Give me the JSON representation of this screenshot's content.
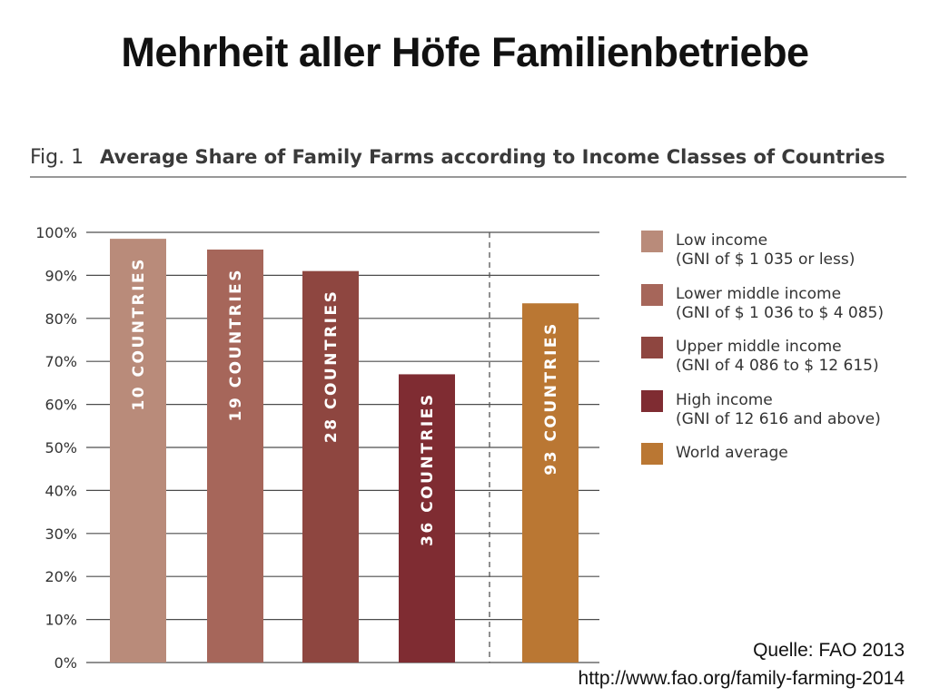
{
  "slide": {
    "title": "Mehrheit aller Höfe Familienbetriebe"
  },
  "figure": {
    "number": "Fig. 1",
    "title": "Average Share of Family Farms according to Income Classes of Countries"
  },
  "source": {
    "label": "Quelle: FAO 2013",
    "url": "http://www.fao.org/family-farming-2014"
  },
  "chart_data": {
    "type": "bar",
    "ylim": [
      0,
      100
    ],
    "yticks": [
      "0%",
      "10%",
      "20%",
      "30%",
      "40%",
      "50%",
      "60%",
      "70%",
      "80%",
      "90%",
      "100%"
    ],
    "grid": true,
    "legend_position": "right",
    "bars": [
      {
        "value": 98.5,
        "label": "10 COUNTRIES",
        "color": "#b98b7a"
      },
      {
        "value": 96,
        "label": "19 COUNTRIES",
        "color": "#a6665a"
      },
      {
        "value": 91,
        "label": "28 COUNTRIES",
        "color": "#8e4640"
      },
      {
        "value": 67,
        "label": "36 COUNTRIES",
        "color": "#7f2c32"
      },
      {
        "value": 83.5,
        "label": "93 COUNTRIES",
        "color": "#ba7733"
      }
    ],
    "legend": [
      {
        "name": "Low income",
        "detail": "(GNI of $ 1 035 or less)",
        "color": "#b98b7a"
      },
      {
        "name": "Lower middle income",
        "detail": "(GNI of $ 1 036 to $ 4 085)",
        "color": "#a6665a"
      },
      {
        "name": "Upper middle income",
        "detail": "(GNI of 4 086 to $ 12 615)",
        "color": "#8e4640"
      },
      {
        "name": "High income",
        "detail": "(GNI of 12 616 and above)",
        "color": "#7f2c32"
      },
      {
        "name": "World average",
        "detail": "",
        "color": "#ba7733"
      }
    ]
  }
}
